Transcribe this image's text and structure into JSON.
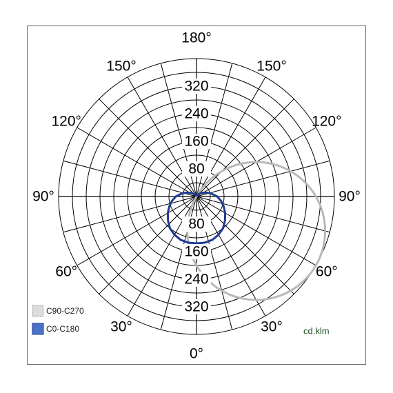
{
  "chart_data": {
    "type": "polar",
    "radial_ticks": [
      80,
      160,
      240,
      320
    ],
    "radial_max": 400,
    "angle_labels": [
      {
        "deg": 180,
        "text": "180°"
      },
      {
        "deg": 150,
        "text": "150°"
      },
      {
        "deg": -150,
        "text": "150°"
      },
      {
        "deg": 120,
        "text": "120°"
      },
      {
        "deg": -120,
        "text": "120°"
      },
      {
        "deg": 90,
        "text": "90°"
      },
      {
        "deg": -90,
        "text": "90°"
      },
      {
        "deg": 60,
        "text": "60°"
      },
      {
        "deg": -60,
        "text": "60°"
      },
      {
        "deg": 30,
        "text": "30°"
      },
      {
        "deg": -30,
        "text": "30°"
      },
      {
        "deg": 0,
        "text": "0°"
      }
    ],
    "series": [
      {
        "name": "C90-C270",
        "color": "#b8b8b8",
        "style": "circle-offset",
        "center_angle_deg": 60,
        "diameter": 400
      },
      {
        "name": "C0-C180",
        "color": "#1f3a93",
        "points": [
          [
            0,
            136
          ],
          [
            10,
            136
          ],
          [
            20,
            134
          ],
          [
            30,
            128
          ],
          [
            40,
            120
          ],
          [
            50,
            108
          ],
          [
            60,
            96
          ],
          [
            70,
            84
          ],
          [
            80,
            72
          ],
          [
            90,
            60
          ],
          [
            100,
            45
          ],
          [
            110,
            33
          ],
          [
            120,
            22
          ],
          [
            130,
            14
          ],
          [
            140,
            9
          ],
          [
            150,
            6
          ],
          [
            160,
            4
          ],
          [
            170,
            3
          ],
          [
            180,
            3
          ]
        ]
      }
    ],
    "unit": "cd.klm"
  }
}
